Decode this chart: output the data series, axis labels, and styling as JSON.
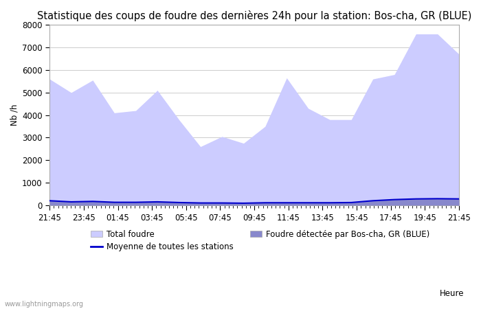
{
  "title": "Statistique des coups de foudre des dernières 24h pour la station: Bos-cha, GR (BLUE)",
  "xlabel": "Heure",
  "ylabel": "Nb /h",
  "watermark": "www.lightningmaps.org",
  "x_labels": [
    "21:45",
    "23:45",
    "01:45",
    "03:45",
    "05:45",
    "07:45",
    "09:45",
    "11:45",
    "13:45",
    "15:45",
    "17:45",
    "19:45",
    "21:45"
  ],
  "ylim": [
    0,
    8000
  ],
  "yticks": [
    0,
    1000,
    2000,
    3000,
    4000,
    5000,
    6000,
    7000,
    8000
  ],
  "total_foudre": [
    5600,
    5000,
    5550,
    4100,
    4200,
    5100,
    3800,
    2600,
    3050,
    2750,
    3500,
    5650,
    4300,
    3800,
    3800,
    5600,
    5800,
    7600,
    7600,
    6700
  ],
  "local_foudre": [
    200,
    150,
    170,
    130,
    130,
    150,
    120,
    100,
    100,
    90,
    110,
    110,
    110,
    110,
    120,
    200,
    250,
    280,
    290,
    280
  ],
  "mean_stations": [
    200,
    150,
    170,
    130,
    130,
    150,
    120,
    100,
    100,
    90,
    110,
    110,
    110,
    110,
    120,
    200,
    250,
    280,
    290,
    280
  ],
  "color_total": "#ccccff",
  "color_local": "#8888cc",
  "color_mean": "#0000cc",
  "legend_labels": [
    "Total foudre",
    "Moyenne de toutes les stations",
    "Foudre détectée par Bos-cha, GR (BLUE)"
  ],
  "background_color": "#ffffff",
  "plot_bg_color": "#ffffff",
  "grid_color": "#cccccc",
  "title_fontsize": 10.5,
  "tick_fontsize": 8.5,
  "label_fontsize": 8.5
}
